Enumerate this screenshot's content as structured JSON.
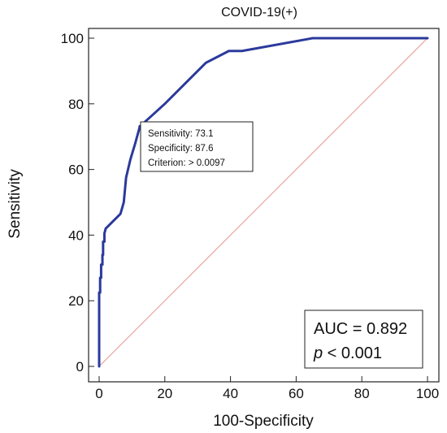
{
  "chart_data": {
    "type": "line",
    "title": "COVID-19(+)",
    "xlabel": "100-Specificity",
    "ylabel": "Sensitivity",
    "xlim": [
      0,
      100
    ],
    "ylim": [
      0,
      100
    ],
    "xticks": [
      0,
      20,
      40,
      60,
      80,
      100
    ],
    "yticks": [
      0,
      20,
      40,
      60,
      80,
      100
    ],
    "grid": false,
    "series": [
      {
        "color": "#2b3a9c",
        "x": [
          0,
          0,
          0.3,
          0.3,
          0.6,
          0.6,
          1.0,
          1.0,
          1.2,
          1.2,
          1.6,
          1.6,
          2.0,
          6.5,
          7.5,
          8.2,
          9.5,
          11.0,
          12.4,
          20,
          26,
          32.5,
          39.5,
          43.5,
          65,
          100
        ],
        "y": [
          0,
          22.5,
          22.5,
          27,
          27,
          31,
          31,
          34,
          34,
          38,
          38,
          40.5,
          42,
          46.5,
          50,
          57.5,
          63,
          68,
          73.1,
          80,
          86,
          92.5,
          96.1,
          96.1,
          100,
          100
        ],
        "stroke_width": 3
      },
      {
        "color": "#e8968f",
        "x": [
          0,
          100
        ],
        "y": [
          0,
          100
        ],
        "stroke_width": 1
      }
    ],
    "annotation": {
      "point": [
        12.4,
        73.1
      ],
      "lines": [
        "Sensitivity: 73.1",
        "Specificity: 87.6",
        "Criterion: > 0.0097"
      ]
    },
    "stats": {
      "auc": "AUC = 0.892",
      "p_symbol": "p",
      "p_rest": " < 0.001"
    }
  }
}
